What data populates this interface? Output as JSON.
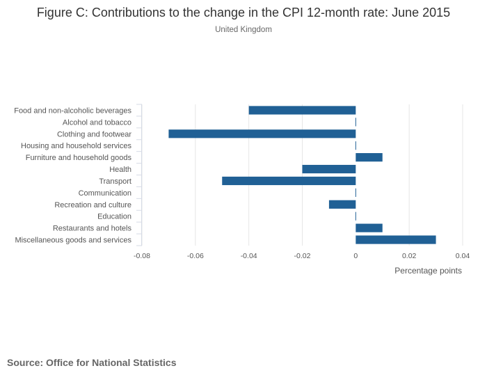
{
  "chart_data": {
    "type": "bar",
    "orientation": "horizontal",
    "title": "Figure C: Contributions to the change in the CPI 12-month rate: June 2015",
    "subtitle": "United Kingdom",
    "xlabel": "Percentage points",
    "ylabel": "",
    "xlim": [
      -0.08,
      0.04
    ],
    "xticks": [
      -0.08,
      -0.06,
      -0.04,
      -0.02,
      0,
      0.02,
      0.04
    ],
    "xtick_labels": [
      "-0.08",
      "-0.06",
      "-0.04",
      "-0.02",
      "0",
      "0.02",
      "0.04"
    ],
    "grid": true,
    "categories": [
      "Food and non-alcoholic beverages",
      "Alcohol and tobacco",
      "Clothing and footwear",
      "Housing and household services",
      "Furniture and household goods",
      "Health",
      "Transport",
      "Communication",
      "Recreation and culture",
      "Education",
      "Restaurants and hotels",
      "Miscellaneous goods and services"
    ],
    "values": [
      -0.04,
      0,
      -0.07,
      0,
      0.01,
      -0.02,
      -0.05,
      0,
      -0.01,
      0,
      0.01,
      0.03
    ],
    "bar_color": "#206095",
    "source": "Source: Office for National Statistics"
  }
}
